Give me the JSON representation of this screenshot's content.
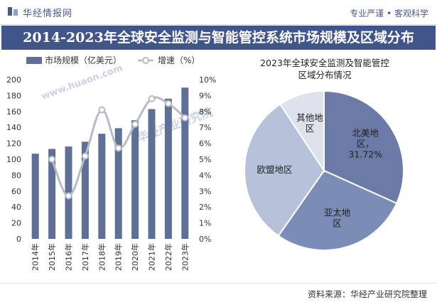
{
  "header": {
    "brand": "华经情报网",
    "slogan": "专业严谨 • 客观科学"
  },
  "title": "2014-2023年全球安全监测与智能管控系统市场规模及区域分布",
  "watermark": {
    "brand": "华经产业研究院",
    "url": "www.huaon.com"
  },
  "footer": {
    "source": "资料来源：华经产业研究院整理"
  },
  "colors": {
    "bar": "#5f6f95",
    "line": "#b7bbc6",
    "title_band": "#41558b",
    "pie": [
      "#6b7aa6",
      "#7b8cb6",
      "#b6c2da",
      "#dde2ec"
    ]
  },
  "chart_data": [
    {
      "type": "bar+line",
      "categories": [
        "2014年",
        "2015年",
        "2016年",
        "2017年",
        "2018年",
        "2019年",
        "2020年",
        "2021年",
        "2022年",
        "2023年"
      ],
      "series": [
        {
          "name": "市场规模（亿美元）",
          "type": "bar",
          "axis": "left",
          "values": [
            107,
            113,
            116,
            122,
            132,
            139,
            149,
            163,
            176,
            190
          ]
        },
        {
          "name": "增速（%）",
          "type": "line",
          "axis": "right",
          "values": [
            null,
            5.0,
            2.7,
            5.2,
            8.1,
            5.7,
            7.2,
            8.8,
            8.5,
            7.6
          ]
        }
      ],
      "y_left": {
        "min": 0,
        "max": 200,
        "ticks": [
          "0",
          "20",
          "40",
          "60",
          "80",
          "100",
          "120",
          "140",
          "160",
          "180",
          "200"
        ]
      },
      "y_right": {
        "min": 0,
        "max": 10,
        "ticks": [
          "0%",
          "1%",
          "2%",
          "3%",
          "4%",
          "5%",
          "6%",
          "7%",
          "8%",
          "9%",
          "10%"
        ]
      },
      "legend": [
        "市场规模（亿美元）",
        "增速（%）"
      ]
    },
    {
      "type": "pie",
      "title_lines": [
        "2023年全球安全监测及智能管控",
        "区域分布情况"
      ],
      "slices": [
        {
          "name": "北美地区",
          "value": 31.72,
          "label_lines": [
            "北美地",
            "区，",
            "31.72%"
          ]
        },
        {
          "name": "亚太地区",
          "value": 28.0,
          "label_lines": [
            "亚太地",
            "区"
          ]
        },
        {
          "name": "欧盟地区",
          "value": 31.0,
          "label_lines": [
            "欧盟地区"
          ]
        },
        {
          "name": "其他地区",
          "value": 9.28,
          "label_lines": [
            "其他地",
            "区"
          ]
        }
      ]
    }
  ]
}
